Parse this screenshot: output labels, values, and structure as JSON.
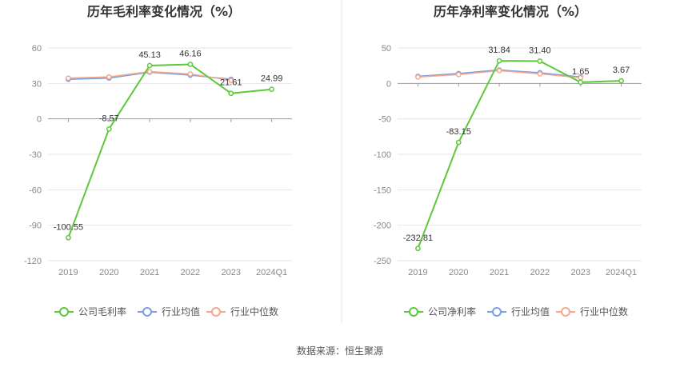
{
  "colors": {
    "company": "#5cc83b",
    "avg": "#7b9ee0",
    "median": "#f4a78e",
    "grid": "#e6e6e6",
    "axis": "#999999",
    "divider": "#e6e6e6"
  },
  "source_text": "数据来源：恒生聚源",
  "chart_data": [
    {
      "type": "line",
      "title": "历年毛利率变化情况（%）",
      "categories": [
        "2019",
        "2020",
        "2021",
        "2022",
        "2023",
        "2024Q1"
      ],
      "ylim": [
        -120,
        60
      ],
      "yticks": [
        60,
        30,
        0,
        -30,
        -60,
        -90,
        -120
      ],
      "grid": true,
      "legend_position": "bottom",
      "series": [
        {
          "name": "公司毛利率",
          "key": "company",
          "values": [
            -100.55,
            -8.57,
            45.13,
            46.16,
            21.61,
            24.99
          ],
          "labels": [
            "-100.55",
            "-8.57",
            "45.13",
            "46.16",
            "21.61",
            "24.99"
          ]
        },
        {
          "name": "行业均值",
          "key": "avg",
          "values": [
            33.5,
            34.5,
            39.5,
            37.0,
            33.5,
            null
          ]
        },
        {
          "name": "行业中位数",
          "key": "median",
          "values": [
            34.5,
            35.5,
            40.0,
            38.0,
            32.5,
            null
          ]
        }
      ]
    },
    {
      "type": "line",
      "title": "历年净利率变化情况（%）",
      "categories": [
        "2019",
        "2020",
        "2021",
        "2022",
        "2023",
        "2024Q1"
      ],
      "ylim": [
        -250,
        50
      ],
      "yticks": [
        50,
        0,
        -50,
        -100,
        -150,
        -200,
        -250
      ],
      "grid": true,
      "legend_position": "bottom",
      "series": [
        {
          "name": "公司净利率",
          "key": "company",
          "values": [
            -232.81,
            -83.15,
            31.84,
            31.4,
            1.65,
            3.67
          ],
          "labels": [
            "-232.81",
            "-83.15",
            "31.84",
            "31.40",
            "1.65",
            "3.67"
          ]
        },
        {
          "name": "行业均值",
          "key": "avg",
          "values": [
            10.0,
            14.0,
            19.0,
            15.0,
            9.0,
            null
          ]
        },
        {
          "name": "行业中位数",
          "key": "median",
          "values": [
            9.0,
            12.5,
            18.0,
            13.5,
            8.0,
            null
          ]
        }
      ]
    }
  ]
}
